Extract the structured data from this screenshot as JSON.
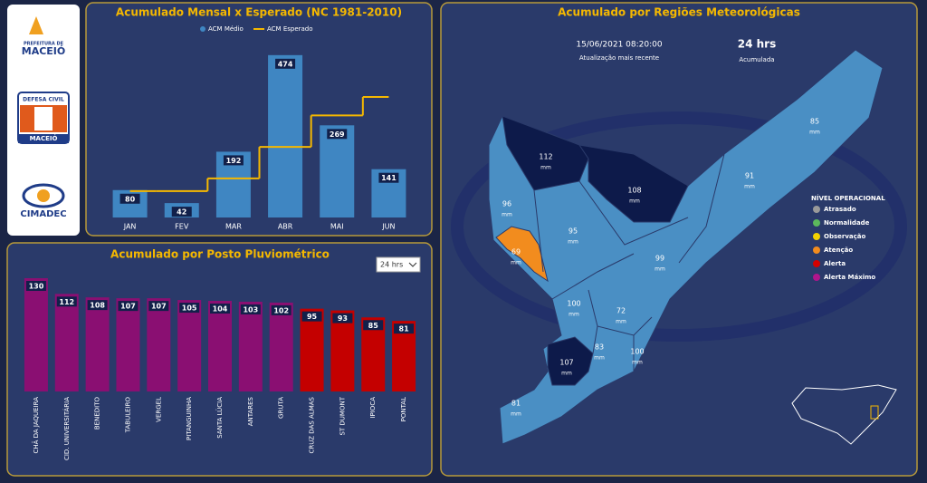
{
  "logos": {
    "prefeitura_top": "PREFEITURA DE",
    "prefeitura": "MACEIÓ",
    "defesa_civil": "DEFESA CIVIL",
    "defesa_civil_city": "MACEIÓ",
    "cimadec": "CIMADEC"
  },
  "chart_data": [
    {
      "type": "bar-line",
      "title": "Acumulado Mensal x Esperado (NC 1981-2010)",
      "categories": [
        "JAN",
        "FEV",
        "MAR",
        "ABR",
        "MAI",
        "JUN"
      ],
      "series": [
        {
          "name": "ACM Médio",
          "color": "#3f86c2",
          "values": [
            80,
            42,
            192,
            474,
            269,
            141
          ]
        },
        {
          "name": "ACM Esperado",
          "color": "#f5b800",
          "values": [
            77,
            77,
            114,
            206,
            298,
            352
          ]
        }
      ],
      "ylim": [
        0,
        500
      ]
    },
    {
      "type": "bar",
      "title": "Acumulado por Posto Pluviométrico",
      "filter": "24 hrs",
      "categories": [
        "CHÃ DA JAQUEIRA",
        "CID. UNIVERSITÁRIA",
        "BENEDITO",
        "TABULEIRO",
        "VERGEL",
        "PITANGUINHA",
        "SANTA LÚCIA",
        "ANTARES",
        "GRUTA",
        "CRUZ DAS ALMAS",
        "ST DUMONT",
        "IPIOCA",
        "PONTAL"
      ],
      "values": [
        130,
        112,
        108,
        107,
        107,
        105,
        104,
        103,
        102,
        95,
        93,
        85,
        81
      ],
      "colors": [
        "#8a0f72",
        "#8a0f72",
        "#8a0f72",
        "#8a0f72",
        "#8a0f72",
        "#8a0f72",
        "#8a0f72",
        "#8a0f72",
        "#8a0f72",
        "#c40000",
        "#c40000",
        "#c40000",
        "#c40000"
      ],
      "ylim": [
        0,
        130
      ]
    }
  ],
  "map": {
    "title": "Acumulado por Regiões Meteorológicas",
    "timestamp": "15/06/2021 08:20:00",
    "timestamp_label": "Atualização mais recente",
    "period": "24 hrs",
    "period_label": "Acumulada",
    "regions": [
      {
        "value": 112,
        "unit": "mm"
      },
      {
        "value": 108,
        "unit": "mm"
      },
      {
        "value": 96,
        "unit": "mm"
      },
      {
        "value": 95,
        "unit": "mm"
      },
      {
        "value": 69,
        "unit": "mm"
      },
      {
        "value": 99,
        "unit": "mm"
      },
      {
        "value": 85,
        "unit": "mm"
      },
      {
        "value": 91,
        "unit": "mm"
      },
      {
        "value": 100,
        "unit": "mm"
      },
      {
        "value": 72,
        "unit": "mm"
      },
      {
        "value": 83,
        "unit": "mm"
      },
      {
        "value": 100,
        "unit": "mm"
      },
      {
        "value": 107,
        "unit": "mm"
      },
      {
        "value": 81,
        "unit": "mm"
      }
    ],
    "legend_title": "NÍVEL OPERACIONAL",
    "legend": [
      {
        "label": "Atrasado",
        "color": "#9a9a9a"
      },
      {
        "label": "Normalidade",
        "color": "#5cb85c"
      },
      {
        "label": "Observação",
        "color": "#f2d000"
      },
      {
        "label": "Atenção",
        "color": "#f28c1e"
      },
      {
        "label": "Alerta",
        "color": "#d40000"
      },
      {
        "label": "Alerta Máximo",
        "color": "#b0158c"
      }
    ]
  }
}
